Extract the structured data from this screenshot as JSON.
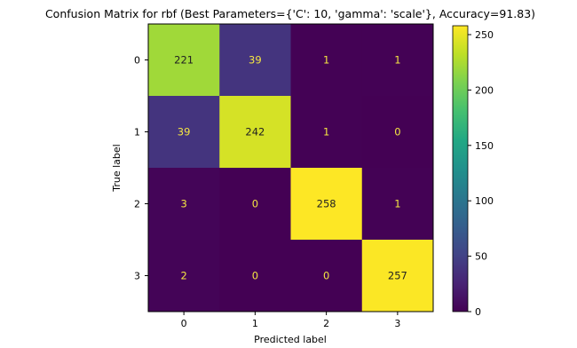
{
  "chart_data": {
    "type": "heatmap",
    "title": "Confusion Matrix for rbf (Best Parameters={'C': 10, 'gamma': 'scale'}, Accuracy=91.83)",
    "xlabel": "Predicted label",
    "ylabel": "True label",
    "x_categories": [
      "0",
      "1",
      "2",
      "3"
    ],
    "y_categories": [
      "0",
      "1",
      "2",
      "3"
    ],
    "values": [
      [
        221,
        39,
        1,
        1
      ],
      [
        39,
        242,
        1,
        0
      ],
      [
        3,
        0,
        258,
        1
      ],
      [
        2,
        0,
        0,
        257
      ]
    ],
    "colormap": "viridis",
    "color_range": [
      0,
      258
    ],
    "colorbar_ticks": [
      0,
      50,
      100,
      150,
      200,
      250
    ],
    "grid": false
  }
}
